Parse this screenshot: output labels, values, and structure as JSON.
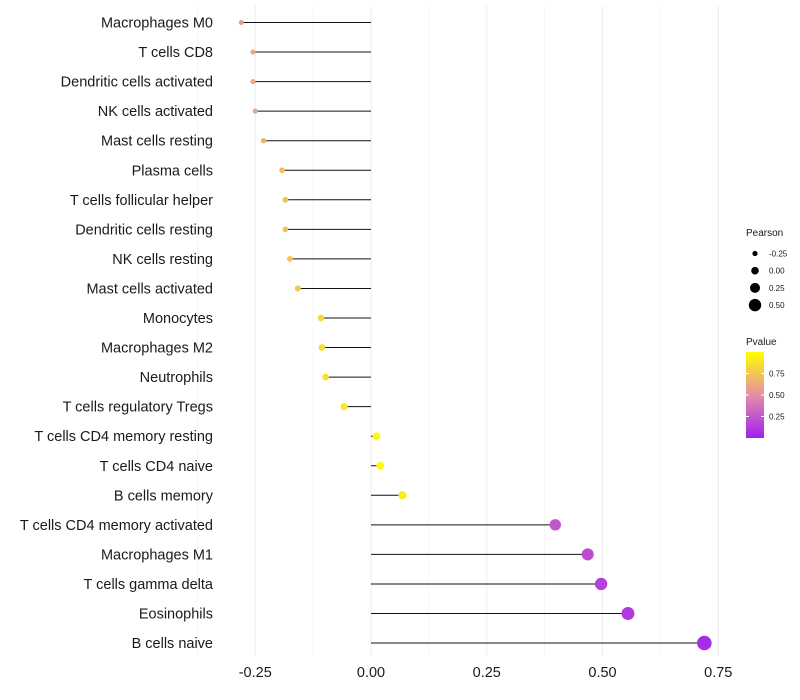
{
  "chart_data": {
    "type": "lollipop",
    "title": "",
    "xlabel": "",
    "ylabel": "",
    "xlim": [
      -0.3,
      0.78
    ],
    "x_ticks": [
      -0.25,
      0.0,
      0.25,
      0.5,
      0.75
    ],
    "x_tick_labels": [
      "-0.25",
      "0.00",
      "0.25",
      "0.50",
      "0.75"
    ],
    "grid": "vertical",
    "categories": [
      "Macrophages M0",
      "T cells CD8",
      "Dendritic cells activated",
      "NK cells activated",
      "Mast cells resting",
      "Plasma cells",
      "T cells follicular helper",
      "Dendritic cells resting",
      "NK cells resting",
      "Mast cells activated",
      "Monocytes",
      "Macrophages M2",
      "Neutrophils",
      "T cells regulatory  Tregs",
      "T cells CD4 memory resting",
      "T cells CD4 naive",
      "B cells memory",
      "T cells CD4 memory activated",
      "Macrophages M1",
      "T cells gamma delta",
      "Eosinophils",
      "B cells naive"
    ],
    "pearson": [
      -0.28,
      -0.255,
      -0.255,
      -0.25,
      -0.232,
      -0.192,
      -0.185,
      -0.185,
      -0.175,
      -0.158,
      -0.108,
      -0.106,
      -0.098,
      -0.058,
      0.012,
      0.02,
      0.068,
      0.398,
      0.468,
      0.497,
      0.555,
      0.72
    ],
    "pvalue": [
      0.55,
      0.62,
      0.62,
      0.62,
      0.66,
      0.72,
      0.74,
      0.74,
      0.75,
      0.76,
      0.84,
      0.84,
      0.86,
      0.9,
      0.98,
      0.98,
      0.93,
      0.25,
      0.2,
      0.15,
      0.12,
      0.05
    ],
    "size_legend": {
      "title": "Pearson",
      "values": [
        -0.25,
        0.0,
        0.25,
        0.5
      ],
      "labels": [
        "-0.25",
        "0.00",
        "0.25",
        "0.50"
      ]
    },
    "color_legend": {
      "title": "Pvalue",
      "range": [
        0.0,
        1.0
      ],
      "ticks": [
        0.25,
        0.5,
        0.75
      ],
      "tick_labels": [
        "0.25",
        "0.50",
        "0.75"
      ],
      "low_color": "#a020f0",
      "mid_color": "#e48ea6",
      "high_color": "#ffff00"
    }
  }
}
